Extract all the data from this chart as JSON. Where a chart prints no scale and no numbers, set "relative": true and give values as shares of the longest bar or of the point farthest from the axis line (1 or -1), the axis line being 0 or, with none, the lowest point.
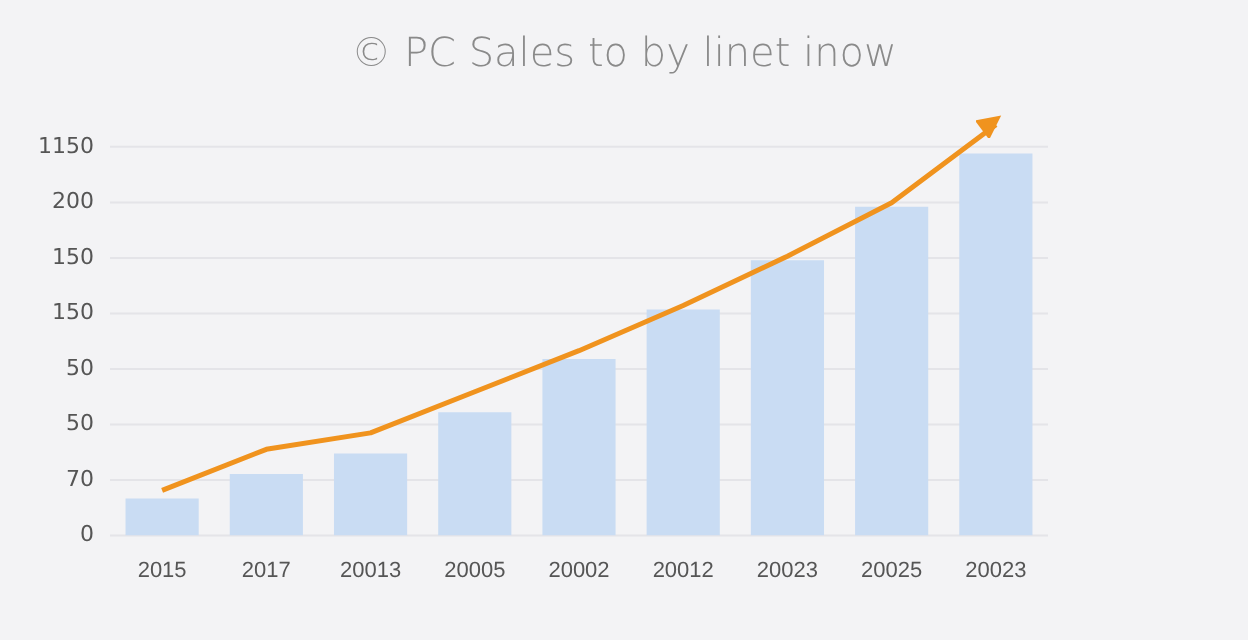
{
  "chart_data": {
    "type": "bar",
    "title": "© PC Sales to by linet inow",
    "relative": true,
    "categories": [
      "2015",
      "2017",
      "20013",
      "20005",
      "20002",
      "20012",
      "20023",
      "20025",
      "20023"
    ],
    "series": [
      {
        "color": "#c9dcf3",
        "values": [
          0.09,
          0.15,
          0.2,
          0.3,
          0.43,
          0.55,
          0.67,
          0.8,
          0.93
        ]
      },
      {
        "type": "line",
        "color": "#f0931e",
        "values": [
          0.11,
          0.21,
          0.25,
          0.35,
          0.45,
          0.56,
          0.68,
          0.81,
          1
        ]
      }
    ],
    "annotations": [
      "0",
      "70",
      "50",
      "50",
      "150",
      "150",
      "200",
      "1150"
    ],
    "grid": "y",
    "legend": false,
    "marker": "none",
    "line_style": "solid"
  }
}
